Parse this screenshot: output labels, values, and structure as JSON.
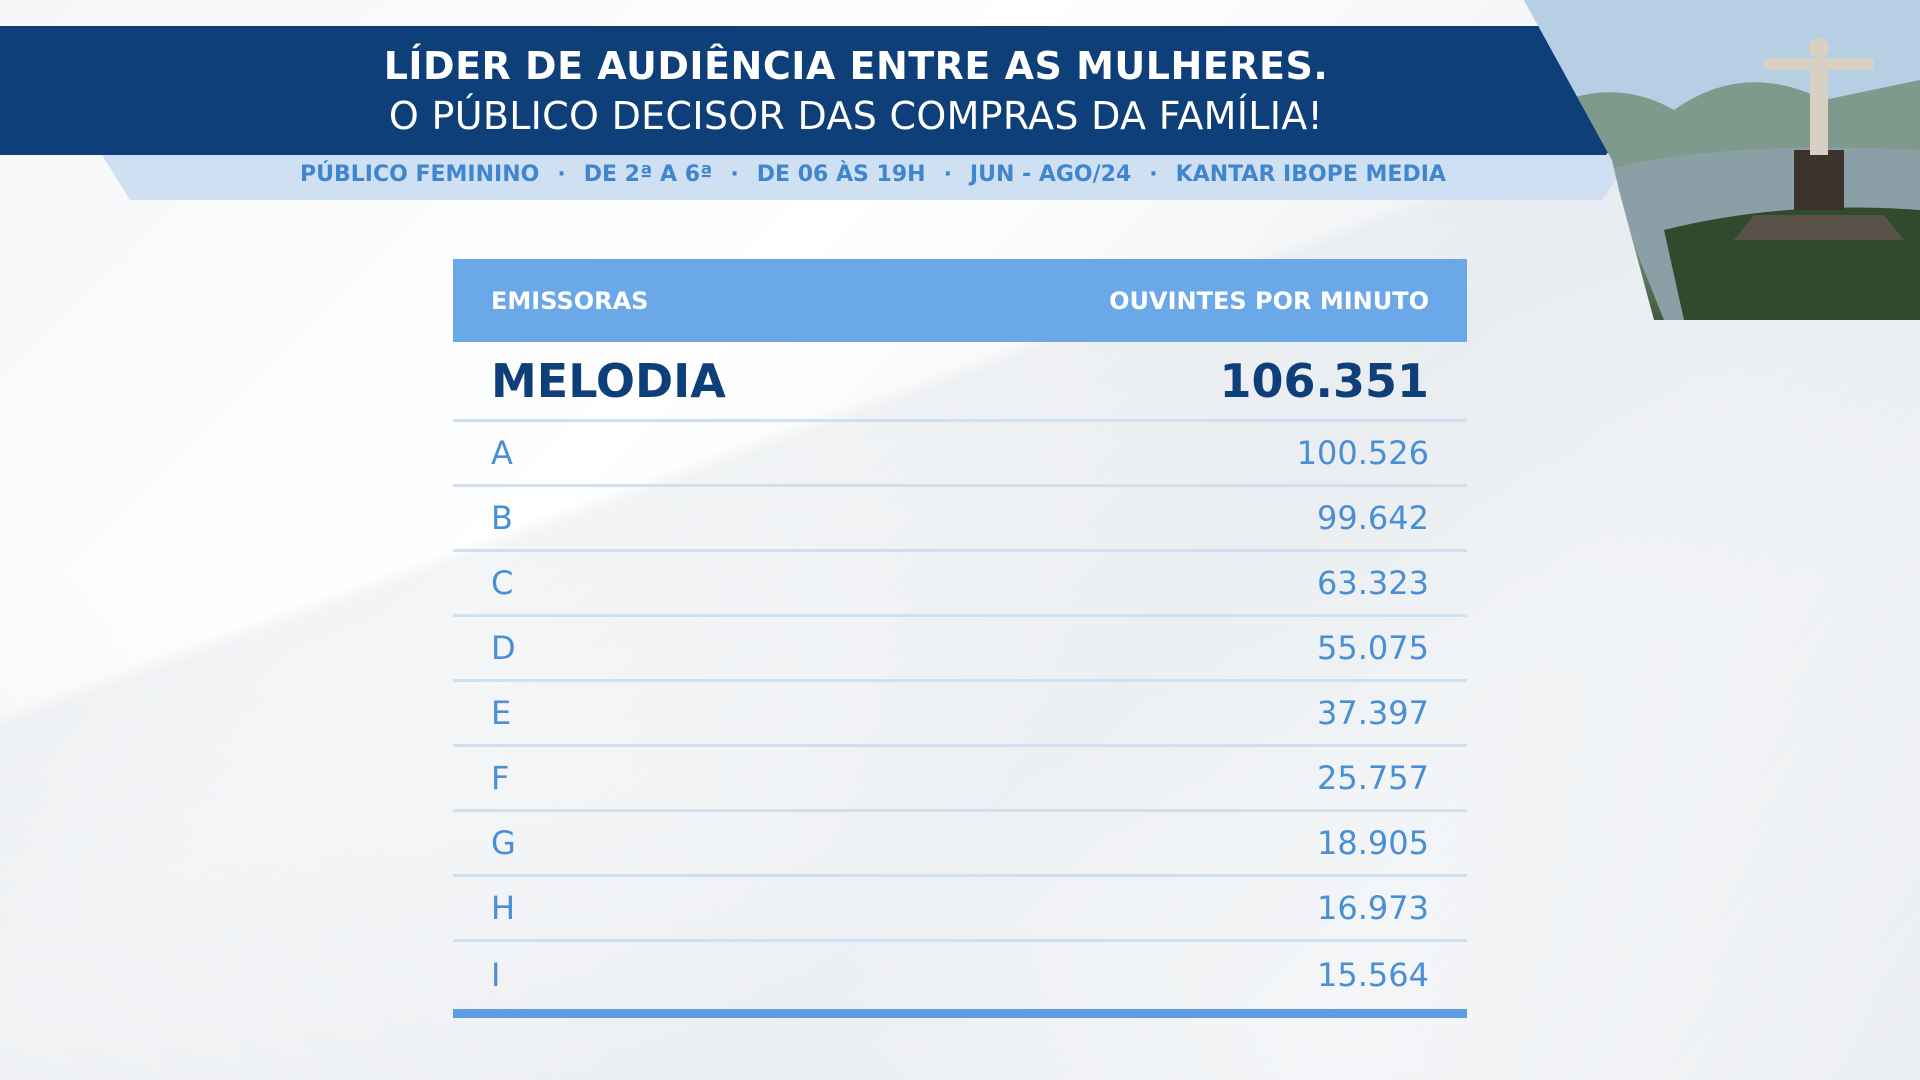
{
  "header": {
    "title_line1": "LÍDER DE AUDIÊNCIA ENTRE AS MULHERES.",
    "title_line2": "O PÚBLICO DECISOR DAS COMPRAS DA FAMÍLIA!"
  },
  "subtitle": {
    "items": [
      "PÚBLICO FEMININO",
      "DE 2ª A 6ª",
      "DE 06 ÀS 19H",
      "JUN - AGO/24",
      "KANTAR IBOPE MEDIA"
    ],
    "separator": "·"
  },
  "table": {
    "columns": [
      "EMISSORAS",
      "OUVINTES POR MINUTO"
    ],
    "top_row": {
      "station": "MELODIA",
      "value": "106.351"
    },
    "rows": [
      {
        "station": "A",
        "value": "100.526"
      },
      {
        "station": "B",
        "value": "99.642"
      },
      {
        "station": "C",
        "value": "63.323"
      },
      {
        "station": "D",
        "value": "55.075"
      },
      {
        "station": "E",
        "value": "37.397"
      },
      {
        "station": "F",
        "value": "25.757"
      },
      {
        "station": "G",
        "value": "18.905"
      },
      {
        "station": "H",
        "value": "16.973"
      },
      {
        "station": "I",
        "value": "15.564"
      }
    ]
  },
  "photo": {
    "icon": "christ-the-redeemer-photo"
  },
  "colors": {
    "dark_blue": "#0f3f78",
    "header_blue": "#6aa8e8",
    "light_blue": "#cfe0f2",
    "row_text": "#4a8fd6"
  }
}
